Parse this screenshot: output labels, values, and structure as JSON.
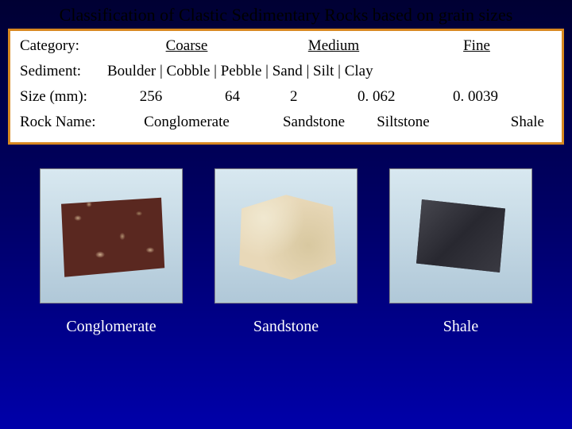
{
  "title": "Classification of Clastic Sedimentary Rocks based on grain sizes",
  "categoryRow": {
    "label": "Category:",
    "coarse": "Coarse",
    "medium": "Medium",
    "fine": "Fine"
  },
  "sedimentRow": {
    "label": "Sediment:",
    "values": "Boulder  |  Cobble  |  Pebble   |   Sand    |        Silt       |   Clay"
  },
  "sizeRow": {
    "label": "Size (mm):",
    "v1": "256",
    "v2": "64",
    "v3": "2",
    "v4": "0. 062",
    "v5": "0. 0039"
  },
  "rockNameRow": {
    "label": "Rock Name:",
    "conglomerate": "Conglomerate",
    "sandstone": "Sandstone",
    "siltstone": "Siltstone",
    "shale": "Shale"
  },
  "gallery": {
    "conglomerate": "Conglomerate",
    "sandstone": "Sandstone",
    "shale": "Shale"
  },
  "colors": {
    "border": "#d88820",
    "bg_top": "#000033",
    "bg_bottom": "#0000aa"
  }
}
